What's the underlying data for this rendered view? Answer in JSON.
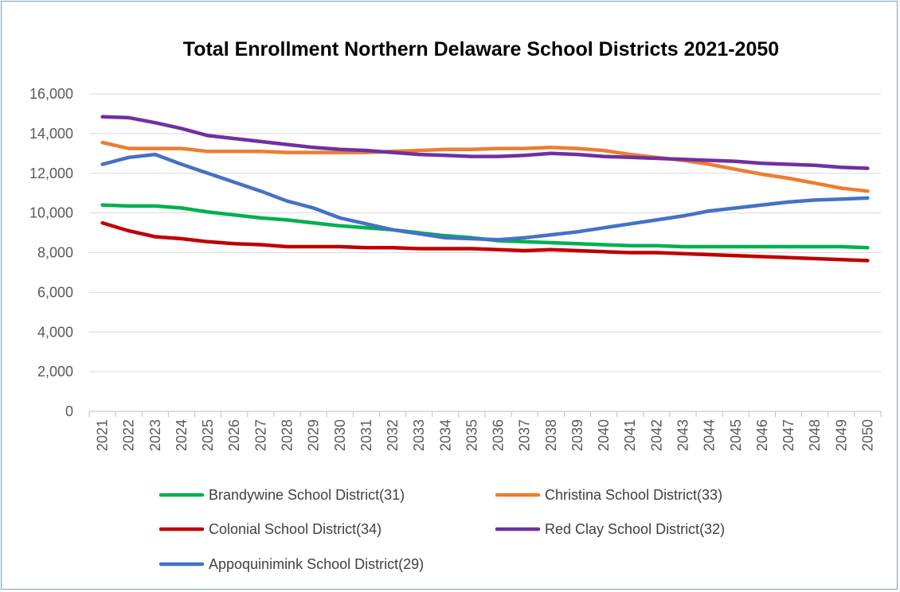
{
  "chart_data": {
    "type": "line",
    "title": "Total Enrollment Northern Delaware School Districts 2021-2050",
    "xlabel": "",
    "ylabel": "",
    "ylim": [
      0,
      16000
    ],
    "yticks": [
      "0",
      "2,000",
      "4,000",
      "6,000",
      "8,000",
      "10,000",
      "12,000",
      "14,000",
      "16,000"
    ],
    "grid": true,
    "legend_position": "bottom",
    "categories": [
      "2021",
      "2022",
      "2023",
      "2024",
      "2025",
      "2026",
      "2027",
      "2028",
      "2029",
      "2030",
      "2031",
      "2032",
      "2033",
      "2034",
      "2035",
      "2036",
      "2037",
      "2038",
      "2039",
      "2040",
      "2041",
      "2042",
      "2043",
      "2044",
      "2045",
      "2046",
      "2047",
      "2048",
      "2049",
      "2050"
    ],
    "series": [
      {
        "name": "Brandywine School District(31)",
        "color": "#00b050",
        "values": [
          10400,
          10350,
          10350,
          10250,
          10050,
          9900,
          9750,
          9650,
          9500,
          9350,
          9250,
          9150,
          9000,
          8850,
          8750,
          8600,
          8550,
          8500,
          8450,
          8400,
          8350,
          8350,
          8300,
          8300,
          8300,
          8300,
          8300,
          8300,
          8300,
          8250
        ]
      },
      {
        "name": "Christina School District(33)",
        "color": "#ed7d31",
        "values": [
          13550,
          13250,
          13250,
          13250,
          13100,
          13100,
          13100,
          13050,
          13050,
          13050,
          13050,
          13100,
          13150,
          13200,
          13200,
          13250,
          13250,
          13300,
          13250,
          13150,
          12950,
          12800,
          12650,
          12450,
          12200,
          11950,
          11750,
          11500,
          11250,
          11100
        ]
      },
      {
        "name": "Colonial School District(34)",
        "color": "#c00000",
        "values": [
          9500,
          9100,
          8800,
          8700,
          8550,
          8450,
          8400,
          8300,
          8300,
          8300,
          8250,
          8250,
          8200,
          8200,
          8200,
          8150,
          8100,
          8150,
          8100,
          8050,
          8000,
          8000,
          7950,
          7900,
          7850,
          7800,
          7750,
          7700,
          7650,
          7600
        ]
      },
      {
        "name": "Red Clay School District(32)",
        "color": "#7030a0",
        "values": [
          14850,
          14800,
          14550,
          14250,
          13900,
          13750,
          13600,
          13450,
          13300,
          13200,
          13150,
          13050,
          12950,
          12900,
          12850,
          12850,
          12900,
          13000,
          12950,
          12850,
          12800,
          12750,
          12700,
          12650,
          12600,
          12500,
          12450,
          12400,
          12300,
          12250
        ]
      },
      {
        "name": "Appoquinimink School District(29)",
        "color": "#4472c4",
        "values": [
          12450,
          12800,
          12950,
          12450,
          12000,
          11550,
          11100,
          10600,
          10250,
          9750,
          9450,
          9150,
          8950,
          8750,
          8700,
          8650,
          8750,
          8900,
          9050,
          9250,
          9450,
          9650,
          9850,
          10100,
          10250,
          10400,
          10550,
          10650,
          10700,
          10750
        ]
      }
    ]
  }
}
